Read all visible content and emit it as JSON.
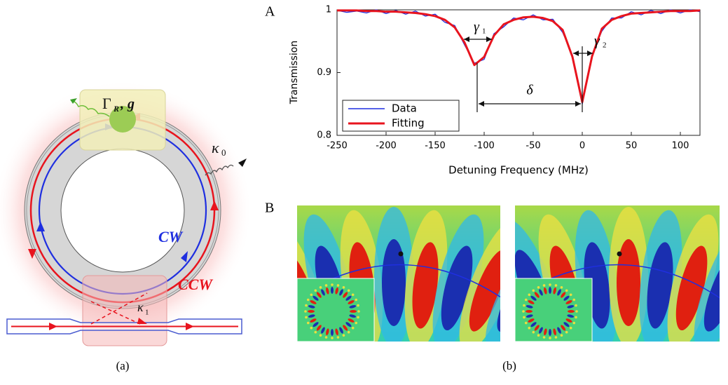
{
  "diagram": {
    "gamma_symbol": "Γ",
    "gamma_sub": "R",
    "coupling": ", g",
    "kappa0": "κ",
    "kappa0_sub": "0",
    "cw": "CW",
    "ccw": "CCW",
    "kappa1": "κ",
    "kappa1_sub": "1"
  },
  "panel_labels": [
    "A",
    "B"
  ],
  "captions": [
    "(a)",
    "(b)"
  ],
  "chart_data": {
    "type": "line",
    "xlabel": "Detuning Frequency (MHz)",
    "ylabel": "Transmission",
    "x": [
      -250,
      -240,
      -230,
      -220,
      -210,
      -200,
      -190,
      -180,
      -170,
      -160,
      -150,
      -140,
      -130,
      -120,
      -110,
      -100,
      -90,
      -80,
      -70,
      -60,
      -50,
      -40,
      -30,
      -20,
      -10,
      0,
      10,
      20,
      30,
      40,
      50,
      60,
      70,
      80,
      90,
      100,
      110,
      120
    ],
    "series": [
      {
        "name": "Data",
        "color": "#1f2fe0",
        "values": [
          0.999,
          0.996,
          0.998,
          0.995,
          1.0,
          0.994,
          0.999,
          0.993,
          0.998,
          0.99,
          0.993,
          0.98,
          0.975,
          0.944,
          0.915,
          0.921,
          0.962,
          0.973,
          0.987,
          0.984,
          0.992,
          0.984,
          0.985,
          0.964,
          0.928,
          0.85,
          0.929,
          0.966,
          0.987,
          0.987,
          0.997,
          0.992,
          0.999,
          0.994,
          1.0,
          0.995,
          1.0,
          0.997
        ]
      },
      {
        "name": "Fitting",
        "color": "#e8141e",
        "values": [
          0.999,
          0.999,
          0.999,
          0.998,
          0.998,
          0.997,
          0.997,
          0.996,
          0.995,
          0.993,
          0.99,
          0.984,
          0.972,
          0.948,
          0.912,
          0.925,
          0.959,
          0.977,
          0.984,
          0.988,
          0.989,
          0.987,
          0.982,
          0.968,
          0.925,
          0.853,
          0.926,
          0.97,
          0.984,
          0.99,
          0.994,
          0.995,
          0.996,
          0.997,
          0.998,
          0.998,
          0.998,
          0.999
        ]
      }
    ],
    "xlim": [
      -250,
      120
    ],
    "xticks": [
      -250,
      -200,
      -150,
      -100,
      -50,
      0,
      50,
      100
    ],
    "ylim": [
      0.8,
      1
    ],
    "yticks": [
      0.8,
      0.9,
      1
    ],
    "legend": "lower-left",
    "annotations": {
      "gamma1": "γ",
      "gamma1_sub": "1",
      "gamma2": "γ",
      "gamma2_sub": "2",
      "delta": "δ"
    }
  }
}
